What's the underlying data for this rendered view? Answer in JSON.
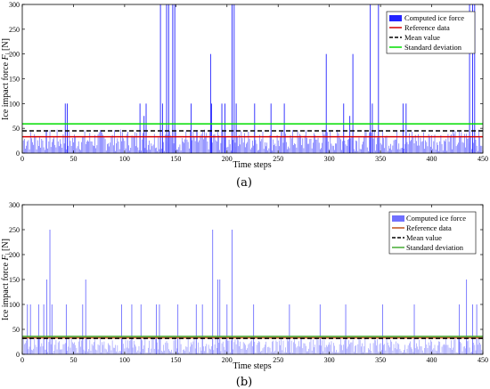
{
  "chart_data": [
    {
      "type": "bar",
      "panel_label": "(a)",
      "xlabel": "Time steps",
      "ylabel_main": "Ice impact force ",
      "ylabel_sym": "F",
      "ylabel_sub": "i",
      "ylabel_unit": " [N]",
      "xlim": [
        0,
        450
      ],
      "ylim": [
        0,
        300
      ],
      "xticks": [
        0,
        50,
        100,
        150,
        200,
        250,
        300,
        350,
        400,
        450
      ],
      "yticks": [
        0,
        50,
        100,
        150,
        200,
        250,
        300
      ],
      "grid": false,
      "legend_position": "top-right",
      "legend": [
        "Computed ice force",
        "Reference data",
        "Mean value",
        "Standard deviation"
      ],
      "series": [
        {
          "name": "Computed ice force",
          "kind": "spikes",
          "color": "#2323ff",
          "spikes": [
            [
              42,
              100
            ],
            [
              44,
              100
            ],
            [
              115,
              100
            ],
            [
              119,
              75
            ],
            [
              121,
              100
            ],
            [
              135,
              300
            ],
            [
              137,
              100
            ],
            [
              141,
              300
            ],
            [
              143,
              300
            ],
            [
              147,
              300
            ],
            [
              149,
              300
            ],
            [
              165,
              100
            ],
            [
              184,
              200
            ],
            [
              185,
              100
            ],
            [
              195,
              100
            ],
            [
              198,
              100
            ],
            [
              205,
              300
            ],
            [
              207,
              300
            ],
            [
              209,
              100
            ],
            [
              227,
              100
            ],
            [
              243,
              100
            ],
            [
              256,
              100
            ],
            [
              297,
              200
            ],
            [
              314,
              100
            ],
            [
              320,
              75
            ],
            [
              323,
              200
            ],
            [
              340,
              300
            ],
            [
              342,
              100
            ],
            [
              348,
              300
            ],
            [
              372,
              100
            ],
            [
              375,
              100
            ],
            [
              437,
              300
            ],
            [
              440,
              300
            ],
            [
              442,
              300
            ]
          ]
        },
        {
          "name": "Reference data",
          "kind": "hline",
          "color": "#d40000",
          "y": 33
        },
        {
          "name": "Mean value",
          "kind": "hline",
          "color": "#000000",
          "dashed": true,
          "y": 45
        },
        {
          "name": "Standard deviation",
          "kind": "hline",
          "color": "#00dd00",
          "y": 59
        }
      ]
    },
    {
      "type": "bar",
      "panel_label": "(b)",
      "xlabel": "Time steps",
      "ylabel_main": "Ice impact force ",
      "ylabel_sym": "F",
      "ylabel_sub": "i",
      "ylabel_unit": " [N]",
      "xlim": [
        0,
        450
      ],
      "ylim": [
        0,
        300
      ],
      "xticks": [
        0,
        50,
        100,
        150,
        200,
        250,
        300,
        350,
        400,
        450
      ],
      "yticks": [
        0,
        50,
        100,
        150,
        200,
        250,
        300
      ],
      "grid": false,
      "legend_position": "top-right",
      "legend": [
        "Computed ice force",
        "Reference data",
        "Mean value",
        "Standard deviation"
      ],
      "series": [
        {
          "name": "Computed ice force",
          "kind": "spikes",
          "color": "#7070ff",
          "spikes": [
            [
              5,
              100
            ],
            [
              8,
              100
            ],
            [
              16,
              100
            ],
            [
              21,
              100
            ],
            [
              24,
              150
            ],
            [
              27,
              250
            ],
            [
              29,
              100
            ],
            [
              43,
              100
            ],
            [
              59,
              100
            ],
            [
              62,
              150
            ],
            [
              97,
              100
            ],
            [
              107,
              100
            ],
            [
              116,
              100
            ],
            [
              131,
              100
            ],
            [
              134,
              100
            ],
            [
              152,
              100
            ],
            [
              170,
              100
            ],
            [
              176,
              100
            ],
            [
              186,
              250
            ],
            [
              191,
              150
            ],
            [
              193,
              150
            ],
            [
              200,
              100
            ],
            [
              205,
              250
            ],
            [
              226,
              100
            ],
            [
              261,
              100
            ],
            [
              291,
              100
            ],
            [
              316,
              100
            ],
            [
              352,
              100
            ],
            [
              383,
              100
            ],
            [
              427,
              100
            ],
            [
              434,
              150
            ],
            [
              440,
              100
            ],
            [
              444,
              100
            ]
          ]
        },
        {
          "name": "Reference data",
          "kind": "hline",
          "color": "#c0501c",
          "y": 33
        },
        {
          "name": "Mean value",
          "kind": "hline",
          "color": "#000000",
          "dashed": true,
          "y": 32
        },
        {
          "name": "Standard deviation",
          "kind": "hline",
          "color": "#44aa33",
          "y": 36
        }
      ]
    }
  ]
}
